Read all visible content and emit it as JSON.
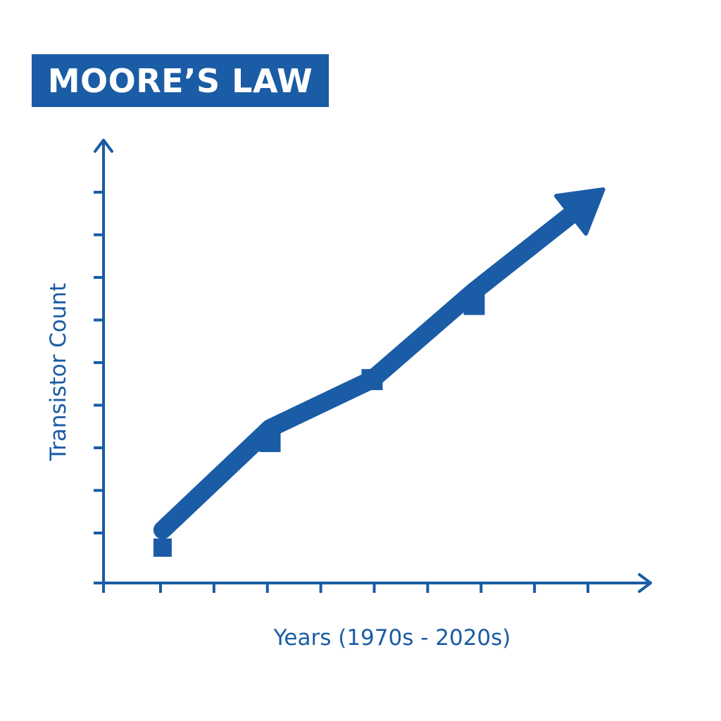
{
  "colors": {
    "primary": "#1a5ca5",
    "background": "#ffffff"
  },
  "chart_data": {
    "type": "line",
    "title": "MOORE’S LAW",
    "xlabel": "Years (1970s - 2020s)",
    "ylabel": "Transistor Count",
    "xlim": [
      0,
      10
    ],
    "ylim": [
      0,
      10
    ],
    "x_tick_count": 10,
    "y_tick_count": 9,
    "grid": false,
    "legend": "none",
    "series": [
      {
        "points": [
          {
            "x": 1.1,
            "y": 1.2
          },
          {
            "x": 3.1,
            "y": 3.5
          },
          {
            "x": 5.0,
            "y": 4.6
          },
          {
            "x": 6.9,
            "y": 6.6
          },
          {
            "x": 9.3,
            "y": 8.9
          }
        ],
        "markers": [
          {
            "x": 1.1,
            "y": 0.8
          },
          {
            "x": 3.1,
            "y": 3.2
          },
          {
            "x": 5.0,
            "y": 4.6
          },
          {
            "x": 6.9,
            "y": 6.3
          }
        ],
        "arrow_end": true
      }
    ]
  }
}
